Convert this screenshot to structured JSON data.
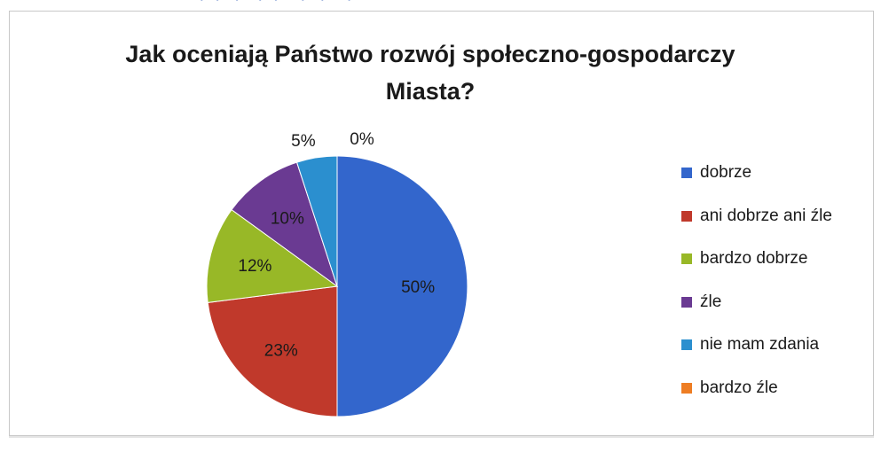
{
  "chart_data": {
    "type": "pie",
    "title": "Jak oceniają Państwo rozwój społeczno-gospodarczy Miasta?",
    "title_lines": [
      "Jak oceniają Państwo rozwój społeczno-gospodarczy",
      "Miasta?"
    ],
    "legend_position": "right",
    "slices": [
      {
        "label": "dobrze",
        "value": 50,
        "data_label": "50%",
        "color": "#3366cc"
      },
      {
        "label": "ani dobrze ani źle",
        "value": 23,
        "data_label": "23%",
        "color": "#c0392b"
      },
      {
        "label": "bardzo dobrze",
        "value": 12,
        "data_label": "12%",
        "color": "#98b827"
      },
      {
        "label": "źle",
        "value": 10,
        "data_label": "10%",
        "color": "#6a3a92"
      },
      {
        "label": "nie mam zdania",
        "value": 5,
        "data_label": "5%",
        "color": "#2b8fcf"
      },
      {
        "label": "bardzo źle",
        "value": 0,
        "data_label": "0%",
        "color": "#ee7d23"
      }
    ]
  }
}
